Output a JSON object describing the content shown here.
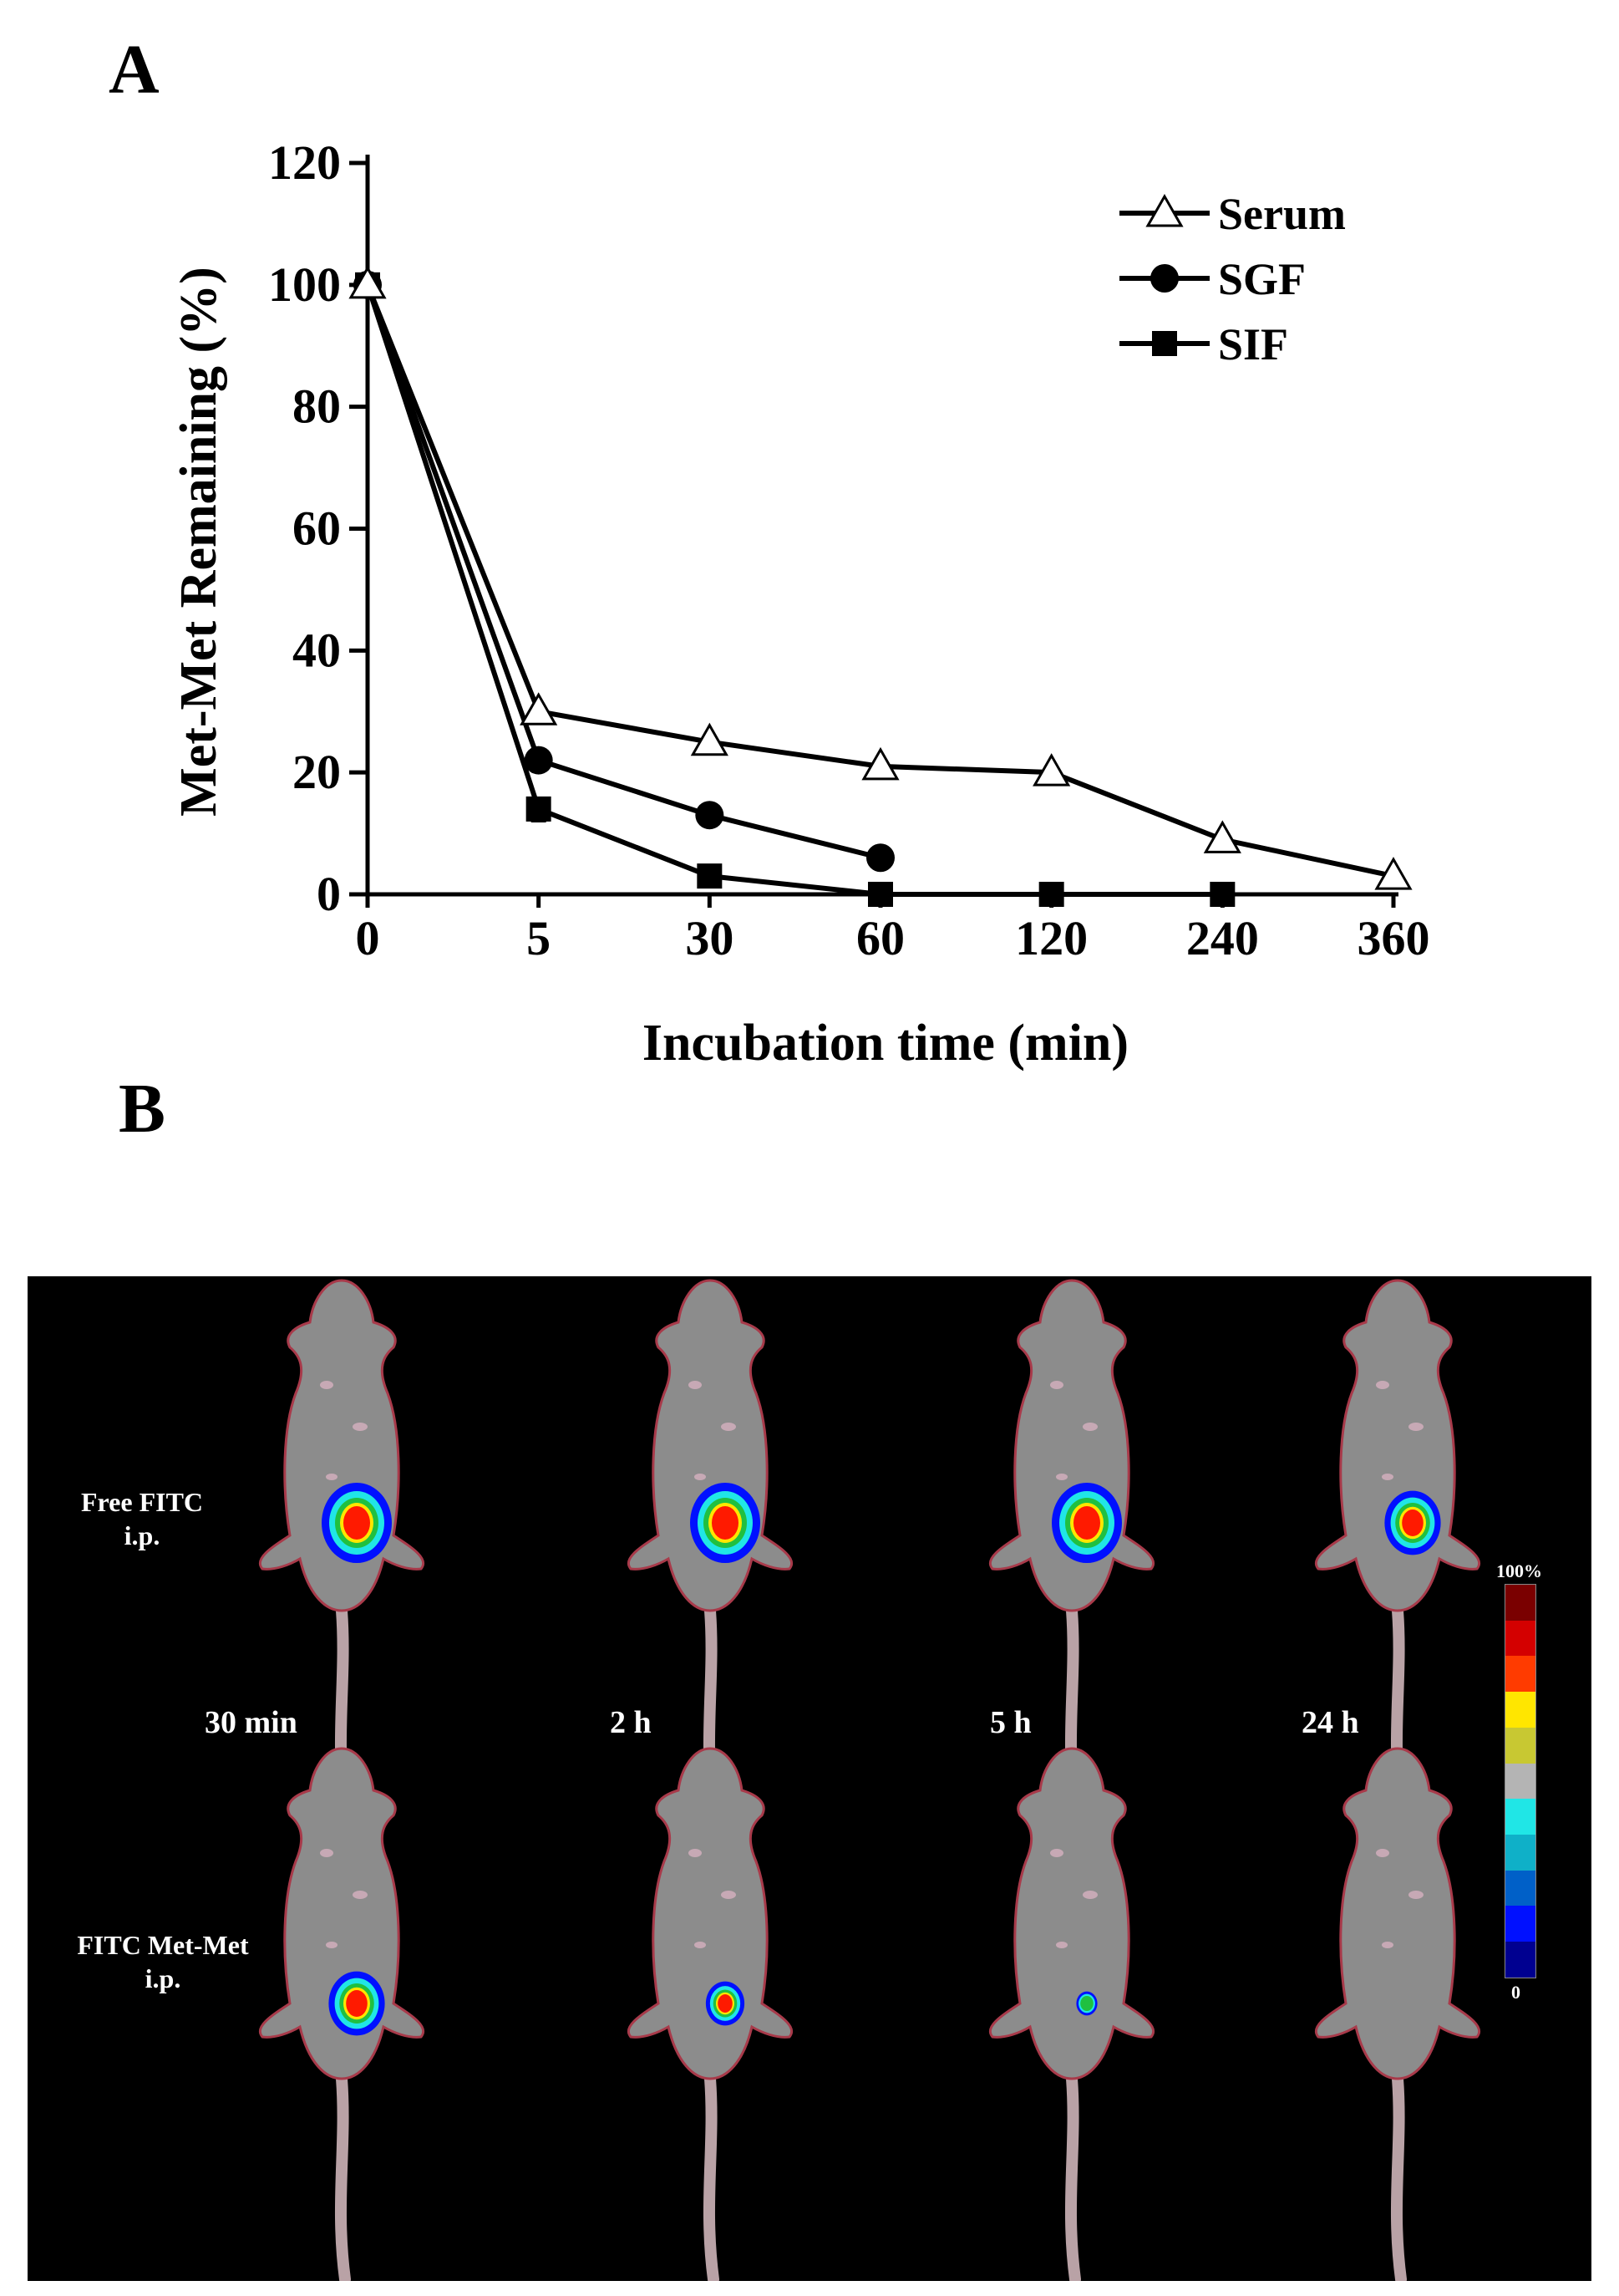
{
  "panels": {
    "a": "A",
    "b": "B"
  },
  "chart_data": {
    "type": "line",
    "title": "",
    "categories": [
      "0",
      "5",
      "30",
      "60",
      "120",
      "240",
      "360"
    ],
    "xlabel": "Incubation time (min)",
    "ylabel": "Met-Met Remaining (%)",
    "ylim": [
      0,
      120
    ],
    "yticks": [
      0,
      20,
      40,
      60,
      80,
      100,
      120
    ],
    "legend_position": "top-right",
    "series": [
      {
        "name": "Serum",
        "marker": "open-triangle",
        "values": [
          100,
          30,
          25,
          21,
          20,
          9,
          3
        ],
        "errors": [
          0,
          2,
          2,
          2,
          2,
          1.5,
          1
        ]
      },
      {
        "name": "SGF",
        "marker": "filled-circle",
        "values": [
          100,
          22,
          13,
          6,
          null,
          null,
          null
        ],
        "errors": [
          0,
          1,
          1,
          1,
          0,
          0,
          0
        ]
      },
      {
        "name": "SIF",
        "marker": "filled-square",
        "values": [
          100,
          14,
          3,
          0,
          0,
          0,
          null
        ],
        "errors": [
          0,
          2,
          1,
          0,
          0,
          0,
          0
        ]
      }
    ]
  },
  "imaging": {
    "row_labels": [
      {
        "line1": "Free  FITC",
        "line2": "i.p."
      },
      {
        "line1": "FITC Met-Met",
        "line2": "i.p."
      }
    ],
    "time_labels": [
      "30 min",
      "2 h",
      "5 h",
      "24 h"
    ],
    "scale_max": "100%",
    "scale_min": "0",
    "colorbar": [
      "#7a0000",
      "#d40000",
      "#ff3b00",
      "#ffe600",
      "#c8c832",
      "#b4b4b4",
      "#20e6e6",
      "#0fb0c8",
      "#0060c8",
      "#0010ff",
      "#000090"
    ]
  }
}
